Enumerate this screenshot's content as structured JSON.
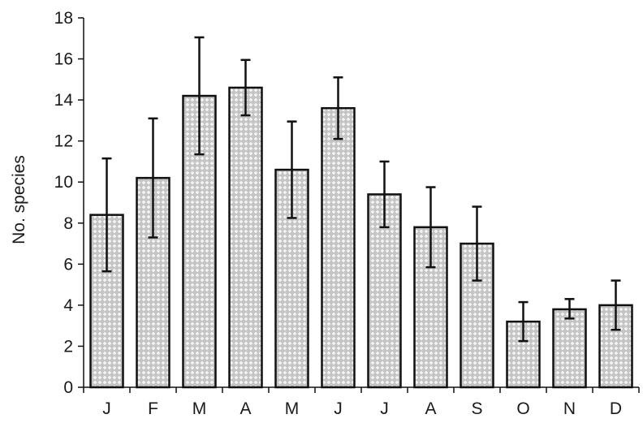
{
  "chart_data": {
    "type": "bar",
    "title": "",
    "xlabel": "",
    "ylabel": "No. species",
    "ylim": [
      0,
      18
    ],
    "yticks": [
      0,
      2,
      4,
      6,
      8,
      10,
      12,
      14,
      16,
      18
    ],
    "grid": false,
    "legend": "none",
    "categories": [
      "J",
      "F",
      "M",
      "A",
      "M",
      "J",
      "J",
      "A",
      "S",
      "O",
      "N",
      "D"
    ],
    "series": [
      {
        "values": [
          8.4,
          10.2,
          14.2,
          14.6,
          10.6,
          13.6,
          9.4,
          7.8,
          7.0,
          3.2,
          3.8,
          4.0
        ],
        "error_high": [
          11.15,
          13.1,
          17.05,
          15.95,
          12.95,
          15.1,
          11.0,
          9.75,
          8.8,
          4.15,
          4.3,
          5.2
        ],
        "error_low": [
          5.65,
          7.3,
          11.35,
          13.25,
          8.25,
          12.1,
          7.8,
          5.85,
          5.2,
          2.25,
          3.35,
          2.8
        ]
      }
    ],
    "colors": {
      "bar_fill": "#c4c4c4",
      "bar_pattern": "#f4f4f4",
      "bar_stroke": "#111111",
      "axis": "#111111"
    }
  }
}
